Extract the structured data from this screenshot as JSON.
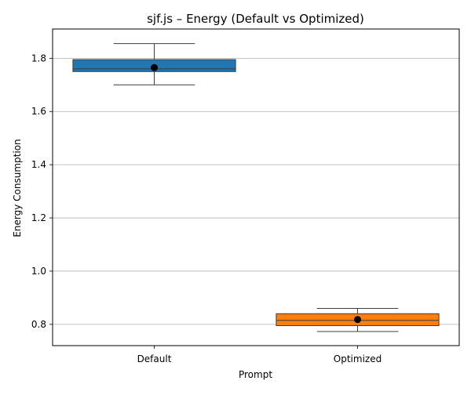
{
  "chart_data": {
    "type": "box",
    "title": "sjf.js – Energy (Default vs Optimized)",
    "xlabel": "Prompt",
    "ylabel": "Energy Consumption",
    "ylim": [
      0.72,
      1.91
    ],
    "yticks": [
      0.8,
      1.0,
      1.2,
      1.4,
      1.6,
      1.8
    ],
    "ytick_labels": [
      "0.8",
      "1.0",
      "1.2",
      "1.4",
      "1.6",
      "1.8"
    ],
    "grid": "horizontal",
    "categories": [
      "Default",
      "Optimized"
    ],
    "boxes": [
      {
        "category": "Default",
        "whisker_low": 1.7,
        "q1": 1.75,
        "median": 1.76,
        "q3": 1.795,
        "whisker_high": 1.855,
        "mean": 1.765,
        "color": "#1f77b4"
      },
      {
        "category": "Optimized",
        "whisker_low": 0.773,
        "q1": 0.795,
        "median": 0.815,
        "q3": 0.84,
        "whisker_high": 0.86,
        "mean": 0.818,
        "color": "#ff7f0e"
      }
    ],
    "colors": {
      "grid": "#b0b0b0",
      "axis": "#000000",
      "box_edge": "#3d3d3d",
      "mean_marker": "#000000"
    }
  }
}
